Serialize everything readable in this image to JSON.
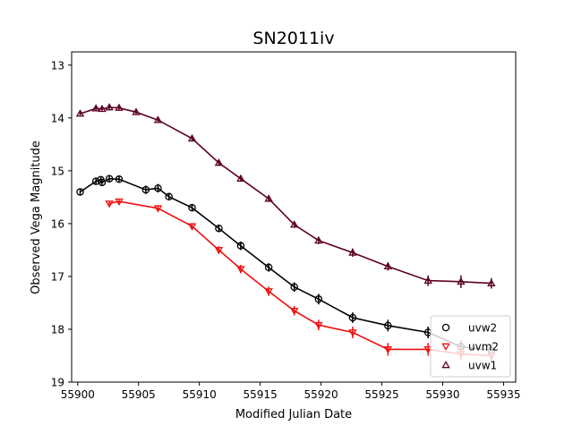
{
  "chart_data": {
    "type": "scatter",
    "title": "SN2011iv",
    "xlabel": "Modified Julian Date",
    "ylabel": "Observed Vega Magnitude",
    "xlim": [
      55899.5,
      55936.0
    ],
    "ylim": [
      19,
      12.75
    ],
    "y_inverted": true,
    "grid": false,
    "legend_position": "lower-right",
    "x_ticks": [
      55900,
      55905,
      55910,
      55915,
      55920,
      55925,
      55930,
      55935
    ],
    "x_tick_labels": [
      "55900",
      "55905",
      "55910",
      "55915",
      "55920",
      "55925",
      "55930",
      "55935"
    ],
    "y_ticks": [
      13,
      14,
      15,
      16,
      17,
      18,
      19
    ],
    "y_tick_labels": [
      "13",
      "14",
      "15",
      "16",
      "17",
      "18",
      "19"
    ],
    "series": [
      {
        "name": "uvw2",
        "color": "#000000",
        "marker": "circle",
        "points": [
          {
            "x": 55900.2,
            "y": 15.4,
            "err": 0.05
          },
          {
            "x": 55901.5,
            "y": 15.2,
            "err": 0.05
          },
          {
            "x": 55901.9,
            "y": 15.17,
            "err": 0.05
          },
          {
            "x": 55902.0,
            "y": 15.22,
            "err": 0.05
          },
          {
            "x": 55902.6,
            "y": 15.15,
            "err": 0.05
          },
          {
            "x": 55903.4,
            "y": 15.16,
            "err": 0.05
          },
          {
            "x": 55905.6,
            "y": 15.36,
            "err": 0.08
          },
          {
            "x": 55906.6,
            "y": 15.33,
            "err": 0.08
          },
          {
            "x": 55907.5,
            "y": 15.49,
            "err": 0.06
          },
          {
            "x": 55909.4,
            "y": 15.7,
            "err": 0.06
          },
          {
            "x": 55911.6,
            "y": 16.09,
            "err": 0.07
          },
          {
            "x": 55913.4,
            "y": 16.42,
            "err": 0.08
          },
          {
            "x": 55915.7,
            "y": 16.83,
            "err": 0.08
          },
          {
            "x": 55917.8,
            "y": 17.2,
            "err": 0.09
          },
          {
            "x": 55919.8,
            "y": 17.43,
            "err": 0.1
          },
          {
            "x": 55922.6,
            "y": 17.78,
            "err": 0.1
          },
          {
            "x": 55925.5,
            "y": 17.93,
            "err": 0.11
          },
          {
            "x": 55928.8,
            "y": 18.06,
            "err": 0.11
          },
          {
            "x": 55931.5,
            "y": 18.33,
            "err": 0.12
          },
          {
            "x": 55934.0,
            "y": 18.4,
            "err": 0.12
          }
        ]
      },
      {
        "name": "uvm2",
        "color": "#ee1111",
        "marker": "triangle-down",
        "points": [
          {
            "x": 55902.6,
            "y": 15.62,
            "err": 0.05
          },
          {
            "x": 55903.4,
            "y": 15.58,
            "err": 0.05
          },
          {
            "x": 55906.6,
            "y": 15.71,
            "err": 0.06
          },
          {
            "x": 55909.4,
            "y": 16.05,
            "err": 0.06
          },
          {
            "x": 55911.6,
            "y": 16.5,
            "err": 0.07
          },
          {
            "x": 55913.4,
            "y": 16.86,
            "err": 0.08
          },
          {
            "x": 55915.7,
            "y": 17.28,
            "err": 0.09
          },
          {
            "x": 55917.8,
            "y": 17.65,
            "err": 0.09
          },
          {
            "x": 55919.8,
            "y": 17.92,
            "err": 0.1
          },
          {
            "x": 55922.6,
            "y": 18.06,
            "err": 0.11
          },
          {
            "x": 55925.5,
            "y": 18.38,
            "err": 0.12
          },
          {
            "x": 55928.8,
            "y": 18.38,
            "err": 0.12
          },
          {
            "x": 55931.5,
            "y": 18.47,
            "err": 0.12
          },
          {
            "x": 55934.0,
            "y": 18.5,
            "err": 0.12
          }
        ]
      },
      {
        "name": "uvw1",
        "color": "#5c0025",
        "marker": "triangle-up",
        "points": [
          {
            "x": 55900.2,
            "y": 13.92,
            "err": 0.04
          },
          {
            "x": 55901.5,
            "y": 13.82,
            "err": 0.04
          },
          {
            "x": 55902.0,
            "y": 13.83,
            "err": 0.04
          },
          {
            "x": 55902.6,
            "y": 13.8,
            "err": 0.04
          },
          {
            "x": 55903.4,
            "y": 13.81,
            "err": 0.04
          },
          {
            "x": 55904.8,
            "y": 13.89,
            "err": 0.04
          },
          {
            "x": 55906.6,
            "y": 14.04,
            "err": 0.04
          },
          {
            "x": 55909.4,
            "y": 14.39,
            "err": 0.05
          },
          {
            "x": 55911.6,
            "y": 14.85,
            "err": 0.05
          },
          {
            "x": 55913.4,
            "y": 15.15,
            "err": 0.05
          },
          {
            "x": 55915.7,
            "y": 15.53,
            "err": 0.06
          },
          {
            "x": 55917.8,
            "y": 16.02,
            "err": 0.06
          },
          {
            "x": 55919.8,
            "y": 16.32,
            "err": 0.07
          },
          {
            "x": 55922.6,
            "y": 16.55,
            "err": 0.08
          },
          {
            "x": 55925.5,
            "y": 16.81,
            "err": 0.08
          },
          {
            "x": 55928.8,
            "y": 17.08,
            "err": 0.1
          },
          {
            "x": 55931.5,
            "y": 17.1,
            "err": 0.12
          },
          {
            "x": 55934.0,
            "y": 17.13,
            "err": 0.1
          }
        ]
      }
    ]
  }
}
